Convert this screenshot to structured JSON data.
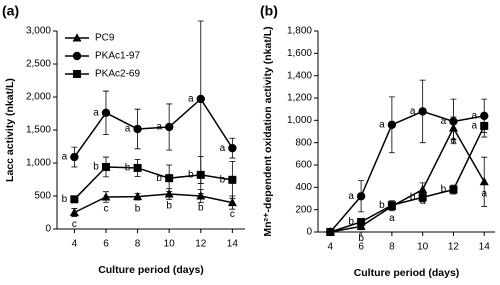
{
  "chart_data": [
    {
      "type": "line",
      "panel_label": "(a)",
      "x_label": "Culture period (days)",
      "y_label": "Lacc activity (nkat/L)",
      "x": [
        4,
        6,
        8,
        10,
        12,
        14
      ],
      "xlim": [
        2.9,
        14.8
      ],
      "xticks": [
        4,
        6,
        8,
        10,
        12,
        14
      ],
      "ylim": [
        0,
        3000
      ],
      "yticks": [
        0,
        500,
        {
          "value": 1000,
          "label": "1,000"
        },
        {
          "value": 1500,
          "label": "1,500"
        },
        {
          "value": 2000,
          "label": "2,000"
        },
        {
          "value": 2500,
          "label": "2,500"
        },
        {
          "value": 3000,
          "label": "3,000"
        }
      ],
      "legend": "upper left",
      "series": [
        {
          "name": "PC9",
          "color": "#000000",
          "marker": "triangle",
          "values": [
            250,
            485,
            490,
            530,
            500,
            400
          ],
          "errors": [
            60,
            80,
            50,
            80,
            100,
            100
          ],
          "point_labels": [
            "c",
            "c",
            "b",
            "b",
            "b",
            "c"
          ]
        },
        {
          "name": "PKAc1-97",
          "color": "#000000",
          "marker": "circle",
          "values": [
            1090,
            1760,
            1515,
            1545,
            1970,
            1225
          ],
          "errors": [
            150,
            330,
            300,
            350,
            1280,
            150
          ],
          "point_labels": [
            "a",
            "a",
            "a",
            "a",
            "a",
            "a"
          ]
        },
        {
          "name": "PKAc2-69",
          "color": "#000000",
          "marker": "square",
          "values": [
            450,
            940,
            925,
            770,
            820,
            745
          ],
          "errors": [
            40,
            150,
            130,
            200,
            280,
            280
          ],
          "point_labels": [
            "b",
            "b",
            "b",
            "b",
            "b",
            "b"
          ]
        }
      ]
    },
    {
      "type": "line",
      "panel_label": "(b)",
      "x_label": "Culture period (days)",
      "y_label": "Mn²⁺-dependent oxidation activity (nkat/L)",
      "x": [
        4,
        6,
        8,
        10,
        12,
        14
      ],
      "xlim": [
        3.2,
        14.7
      ],
      "xticks": [
        4,
        6,
        8,
        10,
        12,
        14
      ],
      "ylim": [
        0,
        1800
      ],
      "yticks": [
        0,
        200,
        400,
        600,
        800,
        {
          "value": 1000,
          "label": "1,000"
        },
        {
          "value": 1200,
          "label": "1,200"
        },
        {
          "value": 1400,
          "label": "1,400"
        },
        {
          "value": 1600,
          "label": "1,600"
        },
        {
          "value": 1800,
          "label": "1,800"
        }
      ],
      "series": [
        {
          "name": "PC9",
          "color": "#000000",
          "marker": "triangle",
          "values": [
            0,
            50,
            230,
            380,
            930,
            450
          ],
          "errors": [
            0,
            30,
            40,
            60,
            100,
            220
          ],
          "point_labels": [
            null,
            "b",
            "a",
            "a",
            "a",
            "a"
          ]
        },
        {
          "name": "PKAc1-97",
          "color": "#000000",
          "marker": "circle",
          "values": [
            0,
            320,
            960,
            1080,
            990,
            1040
          ],
          "errors": [
            0,
            140,
            250,
            280,
            200,
            150
          ],
          "point_labels": [
            null,
            "a",
            "a",
            "a",
            "a",
            "a"
          ]
        },
        {
          "name": "PKAc2-69",
          "color": "#000000",
          "marker": "square",
          "values": [
            0,
            90,
            240,
            310,
            380,
            950
          ],
          "errors": [
            0,
            30,
            40,
            40,
            40,
            100
          ],
          "point_labels": [
            null,
            "b",
            "b",
            "b",
            "b",
            "a"
          ]
        }
      ]
    }
  ]
}
